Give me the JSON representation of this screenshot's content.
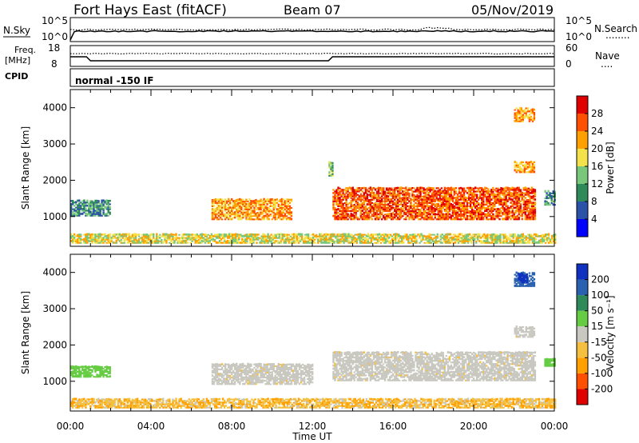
{
  "header": {
    "station": "Fort Hays East (fitACF)",
    "beam": "Beam 07",
    "date": "05/Nov/2019"
  },
  "sky_panel": {
    "left_label": "N.Sky",
    "left_ticks": [
      "10^5",
      "10^0"
    ],
    "right_label": "N.Search",
    "right_legend_line": "........",
    "right_ticks": [
      "10^5",
      "10^0"
    ]
  },
  "freq_panel": {
    "left_label_1": "Freq.",
    "left_label_2": "[MHz]",
    "left_ticks": [
      "18",
      "8"
    ],
    "right_label": "Nave",
    "right_legend_line": "....",
    "right_ticks": [
      "60",
      "0"
    ]
  },
  "cpid": {
    "label": "CPID",
    "mode": "normal -150 IF"
  },
  "colorbar_power": {
    "title": "Power [dB]",
    "ticks": [
      "4",
      "8",
      "12",
      "16",
      "20",
      "24",
      "28"
    ],
    "colors": [
      "#0000ff",
      "#2a52a8",
      "#2f8a5a",
      "#78c77a",
      "#f4e24a",
      "#ffa000",
      "#ff5000",
      "#e00000"
    ]
  },
  "colorbar_velocity": {
    "title": "Velocity [m s⁻¹]",
    "ticks": [
      "200",
      "100",
      "50",
      "15",
      "-15",
      "-50",
      "-100",
      "-200"
    ],
    "colors": [
      "#1030c0",
      "#2a60b0",
      "#2f8a5a",
      "#66cc44",
      "#c8c8c0",
      "#f5c040",
      "#ffa000",
      "#ff5000",
      "#e00000"
    ]
  },
  "axes": {
    "y_label": "Slant Range [km]",
    "y_ticks": [
      "1000",
      "2000",
      "3000",
      "4000"
    ],
    "x_label": "Time UT",
    "x_ticks": [
      "00:00",
      "04:00",
      "08:00",
      "12:00",
      "16:00",
      "20:00",
      "00:00"
    ]
  },
  "chart_data": [
    {
      "type": "heatmap",
      "title": "",
      "xlabel": "Time UT",
      "ylabel": "Slant Range [km]",
      "xlim": [
        0,
        24
      ],
      "ylim": [
        180,
        4500
      ],
      "colorbar": "Power [dB]",
      "features": [
        {
          "t0": 0.0,
          "t1": 2.0,
          "r0": 1000,
          "r1": 1450,
          "power": 8
        },
        {
          "t0": 7.0,
          "t1": 11.0,
          "r0": 900,
          "r1": 1450,
          "power": 20
        },
        {
          "t0": 0.0,
          "t1": 24.0,
          "r0": 250,
          "r1": 500,
          "power": 16
        },
        {
          "t0": 13.0,
          "t1": 23.0,
          "r0": 900,
          "r1": 1800,
          "power": 24
        },
        {
          "t0": 12.8,
          "t1": 13.0,
          "r0": 2100,
          "r1": 2500,
          "power": 12
        },
        {
          "t0": 22.0,
          "t1": 23.0,
          "r0": 2200,
          "r1": 2500,
          "power": 20
        },
        {
          "t0": 22.0,
          "t1": 23.0,
          "r0": 3600,
          "r1": 4000,
          "power": 20
        },
        {
          "t0": 23.5,
          "t1": 24.0,
          "r0": 1300,
          "r1": 1700,
          "power": 8
        }
      ]
    },
    {
      "type": "heatmap",
      "title": "",
      "xlabel": "Time UT",
      "ylabel": "Slant Range [km]",
      "xlim": [
        0,
        24
      ],
      "ylim": [
        180,
        4500
      ],
      "colorbar": "Velocity [m s⁻¹]",
      "features": [
        {
          "t0": 0.0,
          "t1": 2.0,
          "r0": 1100,
          "r1": 1400,
          "velocity": 50
        },
        {
          "t0": 7.0,
          "t1": 12.0,
          "r0": 900,
          "r1": 1450,
          "velocity": 0
        },
        {
          "t0": 0.0,
          "t1": 24.0,
          "r0": 250,
          "r1": 500,
          "velocity": -50
        },
        {
          "t0": 13.0,
          "t1": 23.0,
          "r0": 1000,
          "r1": 1800,
          "velocity": 0
        },
        {
          "t0": 22.0,
          "t1": 23.0,
          "r0": 2200,
          "r1": 2500,
          "velocity": 0
        },
        {
          "t0": 22.0,
          "t1": 23.0,
          "r0": 3600,
          "r1": 4000,
          "velocity": 100
        },
        {
          "t0": 22.2,
          "t1": 22.6,
          "r0": 3700,
          "r1": 3950,
          "velocity": 200
        },
        {
          "t0": 23.5,
          "t1": 24.0,
          "r0": 1400,
          "r1": 1600,
          "velocity": 50
        }
      ]
    }
  ]
}
